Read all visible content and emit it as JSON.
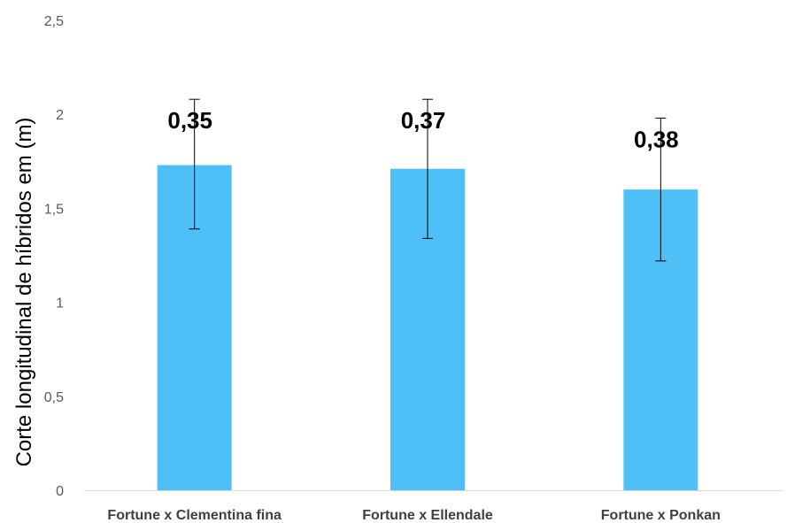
{
  "chart_data": {
    "type": "bar",
    "title": "",
    "xlabel": "",
    "ylabel": "Corte longitudinal de  híbridos em (m)",
    "categories": [
      "Fortune x Clementina fina",
      "Fortune x Ellendale",
      "Fortune x Ponkan"
    ],
    "values": [
      1.73,
      1.71,
      1.6
    ],
    "error_low": [
      1.39,
      1.34,
      1.22
    ],
    "error_high": [
      2.08,
      2.08,
      1.98
    ],
    "data_labels": [
      "0,35",
      "0,37",
      "0,38"
    ],
    "ylim": [
      0,
      2.5
    ],
    "yticks": [
      "0",
      "0,5",
      "1",
      "1,5",
      "2",
      "2,5"
    ],
    "bar_color": "#4FC0F7",
    "axis_color": "#D9D9D9",
    "error_bar_color": "#000000",
    "grid": false,
    "legend": "none"
  }
}
